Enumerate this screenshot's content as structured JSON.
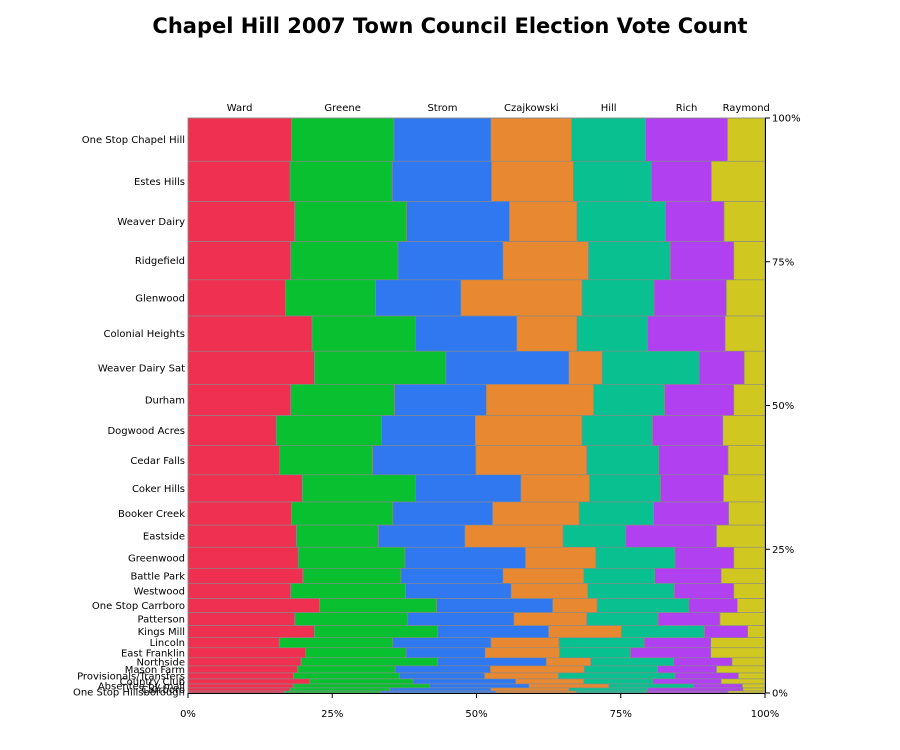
{
  "chart_data": {
    "type": "mosaic",
    "title": "Chapel Hill 2007 Town Council Election Vote Count",
    "xlabel": "",
    "ylabel": "",
    "candidates": [
      "Ward",
      "Greene",
      "Strom",
      "Czajkowski",
      "Hill",
      "Rich",
      "Raymond"
    ],
    "colors": [
      "#f03050",
      "#08c030",
      "#3078f0",
      "#e88830",
      "#08c090",
      "#b040f0",
      "#d0c820"
    ],
    "x_ticks": [
      "0%",
      "25%",
      "50%",
      "75%",
      "100%"
    ],
    "y_ticks": [
      "0%",
      "25%",
      "50%",
      "75%",
      "100%"
    ],
    "xlim": [
      0,
      100
    ],
    "ylim": [
      0,
      100
    ],
    "grid": false,
    "legend": "none",
    "precincts": [
      {
        "name": "One Stop Chapel Hill",
        "share": 7.56,
        "cum": [
          17.9,
          35.7,
          52.5,
          66.5,
          79.3,
          93.5,
          100
        ]
      },
      {
        "name": "Estes Hills",
        "share": 7.03,
        "cum": [
          17.7,
          35.4,
          52.6,
          66.8,
          80.3,
          90.7,
          100
        ]
      },
      {
        "name": "Weaver Dairy",
        "share": 7.03,
        "cum": [
          18.5,
          37.9,
          55.7,
          67.4,
          82.8,
          92.9,
          100
        ]
      },
      {
        "name": "Ridgefield",
        "share": 6.68,
        "cum": [
          17.8,
          36.4,
          54.6,
          69.4,
          83.6,
          94.6,
          100
        ]
      },
      {
        "name": "Glenwood",
        "share": 6.33,
        "cum": [
          16.9,
          32.5,
          47.3,
          68.3,
          80.8,
          93.3,
          100
        ]
      },
      {
        "name": "Colonial Heights",
        "share": 6.15,
        "cum": [
          21.5,
          39.4,
          57.0,
          67.4,
          79.7,
          93.1,
          100
        ]
      },
      {
        "name": "Weaver Dairy Sat",
        "share": 5.8,
        "cum": [
          21.9,
          44.7,
          66.0,
          71.8,
          88.6,
          96.4,
          100
        ]
      },
      {
        "name": "Durham",
        "share": 5.45,
        "cum": [
          17.8,
          35.8,
          51.7,
          70.3,
          82.6,
          94.6,
          100
        ]
      },
      {
        "name": "Dogwood Acres",
        "share": 5.27,
        "cum": [
          15.3,
          33.5,
          49.8,
          68.3,
          80.5,
          92.7,
          100
        ]
      },
      {
        "name": "Cedar Falls",
        "share": 5.1,
        "cum": [
          15.9,
          32.0,
          49.9,
          69.1,
          81.6,
          93.6,
          100
        ]
      },
      {
        "name": "Coker Hills",
        "share": 4.75,
        "cum": [
          19.8,
          39.4,
          57.7,
          69.6,
          81.9,
          92.8,
          100
        ]
      },
      {
        "name": "Booker Creek",
        "share": 4.04,
        "cum": [
          17.9,
          35.5,
          52.8,
          67.8,
          80.7,
          93.7,
          100
        ]
      },
      {
        "name": "Eastside",
        "share": 3.87,
        "cum": [
          18.8,
          33.0,
          48.0,
          65.0,
          75.9,
          91.6,
          100
        ]
      },
      {
        "name": "Greenwood",
        "share": 3.69,
        "cum": [
          19.1,
          37.6,
          58.5,
          70.7,
          84.4,
          94.6,
          100
        ]
      },
      {
        "name": "Battle Park",
        "share": 2.64,
        "cum": [
          19.9,
          36.9,
          54.6,
          68.6,
          80.9,
          92.4,
          100
        ]
      },
      {
        "name": "Westwood",
        "share": 2.64,
        "cum": [
          17.8,
          37.7,
          56.0,
          69.3,
          84.3,
          94.6,
          100
        ]
      },
      {
        "name": "One Stop Carrboro",
        "share": 2.46,
        "cum": [
          22.8,
          43.1,
          63.2,
          70.9,
          86.8,
          95.2,
          100
        ]
      },
      {
        "name": "Patterson",
        "share": 2.28,
        "cum": [
          18.5,
          38.1,
          56.5,
          69.1,
          81.5,
          92.2,
          100
        ]
      },
      {
        "name": "Kings Mill",
        "share": 2.11,
        "cum": [
          21.9,
          43.3,
          62.5,
          75.1,
          89.5,
          97.0,
          100
        ]
      },
      {
        "name": "Lincoln",
        "share": 1.76,
        "cum": [
          15.8,
          35.5,
          52.5,
          64.3,
          79.1,
          90.6,
          100
        ]
      },
      {
        "name": "East Franklin",
        "share": 1.76,
        "cum": [
          20.4,
          37.8,
          51.5,
          64.4,
          76.7,
          90.6,
          100
        ]
      },
      {
        "name": "Northside",
        "share": 1.41,
        "cum": [
          19.6,
          43.3,
          62.1,
          69.8,
          84.2,
          94.3,
          100
        ]
      },
      {
        "name": "Mason Farm",
        "share": 1.23,
        "cum": [
          19.0,
          35.9,
          52.4,
          68.7,
          81.4,
          91.6,
          100
        ]
      },
      {
        "name": "Provisionals/Transfers",
        "share": 1.05,
        "cum": [
          18.3,
          36.7,
          51.4,
          64.2,
          84.4,
          95.4,
          100
        ]
      },
      {
        "name": "Country Club",
        "share": 0.88,
        "cum": [
          21.1,
          39.0,
          56.8,
          68.6,
          80.6,
          92.4,
          100
        ]
      },
      {
        "name": "Absentee by mail",
        "share": 0.7,
        "cum": [
          18.2,
          41.9,
          59.1,
          72.9,
          87.6,
          96.1,
          100
        ]
      },
      {
        "name": "Carrboro",
        "share": 0.53,
        "cum": [
          17.7,
          35.0,
          52.5,
          66.0,
          79.7,
          96.2,
          100
        ]
      },
      {
        "name": "One Stop Hillsborough",
        "share": 0.35,
        "cum": [
          16.7,
          33.3,
          53.4,
          67.3,
          79.5,
          93.6,
          100
        ]
      }
    ]
  }
}
